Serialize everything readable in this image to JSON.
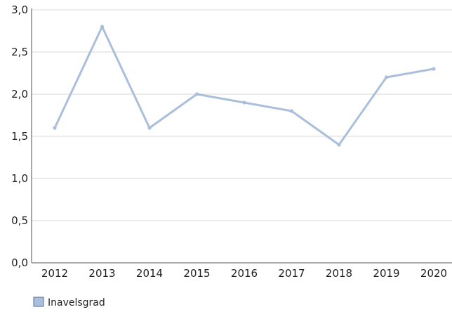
{
  "chart_data": {
    "type": "line",
    "title": "",
    "xlabel": "",
    "ylabel": "",
    "categories": [
      "2012",
      "2013",
      "2014",
      "2015",
      "2016",
      "2017",
      "2018",
      "2019",
      "2020"
    ],
    "series": [
      {
        "name": "Inavelsgrad",
        "values": [
          1.6,
          2.8,
          1.6,
          2.0,
          1.9,
          1.8,
          1.4,
          2.2,
          2.3
        ],
        "color": "#aabfdc"
      }
    ],
    "ylim": [
      0,
      3
    ],
    "yticks": [
      "0,0",
      "0,5",
      "1,0",
      "1,5",
      "2,0",
      "2,5",
      "3,0"
    ],
    "grid": true,
    "legend_position": "bottom-left"
  }
}
